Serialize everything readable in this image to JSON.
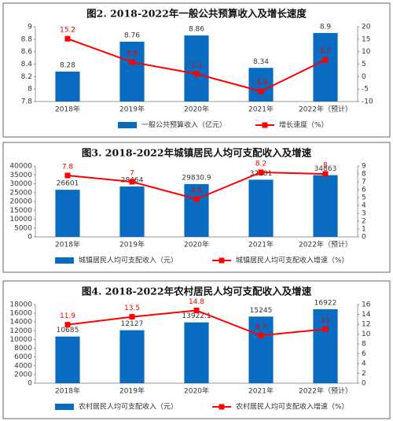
{
  "chart_data": [
    {
      "type": "combo",
      "title": "图2. 2018-2022年一般公共预算收入及增长速度",
      "categories": [
        "2018年",
        "2019年",
        "2020年",
        "2021年",
        "2022年（预计）"
      ],
      "series": [
        {
          "name": "一般公共预算收入（亿元）",
          "type": "bar",
          "color": "#0a6cc0",
          "values": [
            8.28,
            8.76,
            8.86,
            8.34,
            8.9
          ]
        },
        {
          "name": "增长速度（%）",
          "type": "line",
          "axis": "y2",
          "color": "#ff0000",
          "values": [
            15.2,
            5.8,
            1.1,
            -5.9,
            6.7
          ]
        }
      ],
      "ylim": [
        7.8,
        9
      ],
      "yticks": [
        7.8,
        8,
        8.2,
        8.4,
        8.6,
        8.8,
        9
      ],
      "y2lim": [
        -10,
        20
      ],
      "y2ticks": [
        -10,
        -5,
        0,
        5,
        10,
        15,
        20
      ]
    },
    {
      "type": "combo",
      "title": "图3. 2018-2022年城镇居民人均可支配收入及增速",
      "categories": [
        "2018年",
        "2019年",
        "2020年",
        "2021年",
        "2022年（预计）"
      ],
      "series": [
        {
          "name": "城镇居民人均可支配收入（元）",
          "type": "bar",
          "color": "#0a6cc0",
          "values": [
            26601,
            28464,
            29830.9,
            32281,
            34863
          ]
        },
        {
          "name": "城镇居民人均可支配收入增速（%）",
          "type": "line",
          "axis": "y2",
          "color": "#ff0000",
          "values": [
            7.8,
            7,
            4.8,
            8.2,
            8
          ]
        }
      ],
      "ylim": [
        0,
        40000
      ],
      "yticks": [
        0,
        5000,
        10000,
        15000,
        20000,
        25000,
        30000,
        35000,
        40000
      ],
      "y2lim": [
        0,
        9
      ],
      "y2ticks": [
        0,
        1,
        2,
        3,
        4,
        5,
        6,
        7,
        8,
        9
      ]
    },
    {
      "type": "combo",
      "title": "图4. 2018-2022年农村居民人均可支配收入及增速",
      "categories": [
        "2018年",
        "2019年",
        "2020年",
        "2021年",
        "2022年（预计）"
      ],
      "series": [
        {
          "name": "农村居民人均可支配收入（元）",
          "type": "bar",
          "color": "#0a6cc0",
          "values": [
            10685,
            12127,
            13922.1,
            15245,
            16922
          ]
        },
        {
          "name": "农村居民人均可支配收入增速（%）",
          "type": "line",
          "axis": "y2",
          "color": "#ff0000",
          "values": [
            11.9,
            13.5,
            14.8,
            9.7,
            11
          ]
        }
      ],
      "ylim": [
        0,
        18000
      ],
      "yticks": [
        0,
        2000,
        4000,
        6000,
        8000,
        10000,
        12000,
        14000,
        16000,
        18000
      ],
      "y2lim": [
        0,
        16
      ],
      "y2ticks": [
        0,
        2,
        4,
        6,
        8,
        10,
        12,
        14,
        16
      ]
    }
  ]
}
